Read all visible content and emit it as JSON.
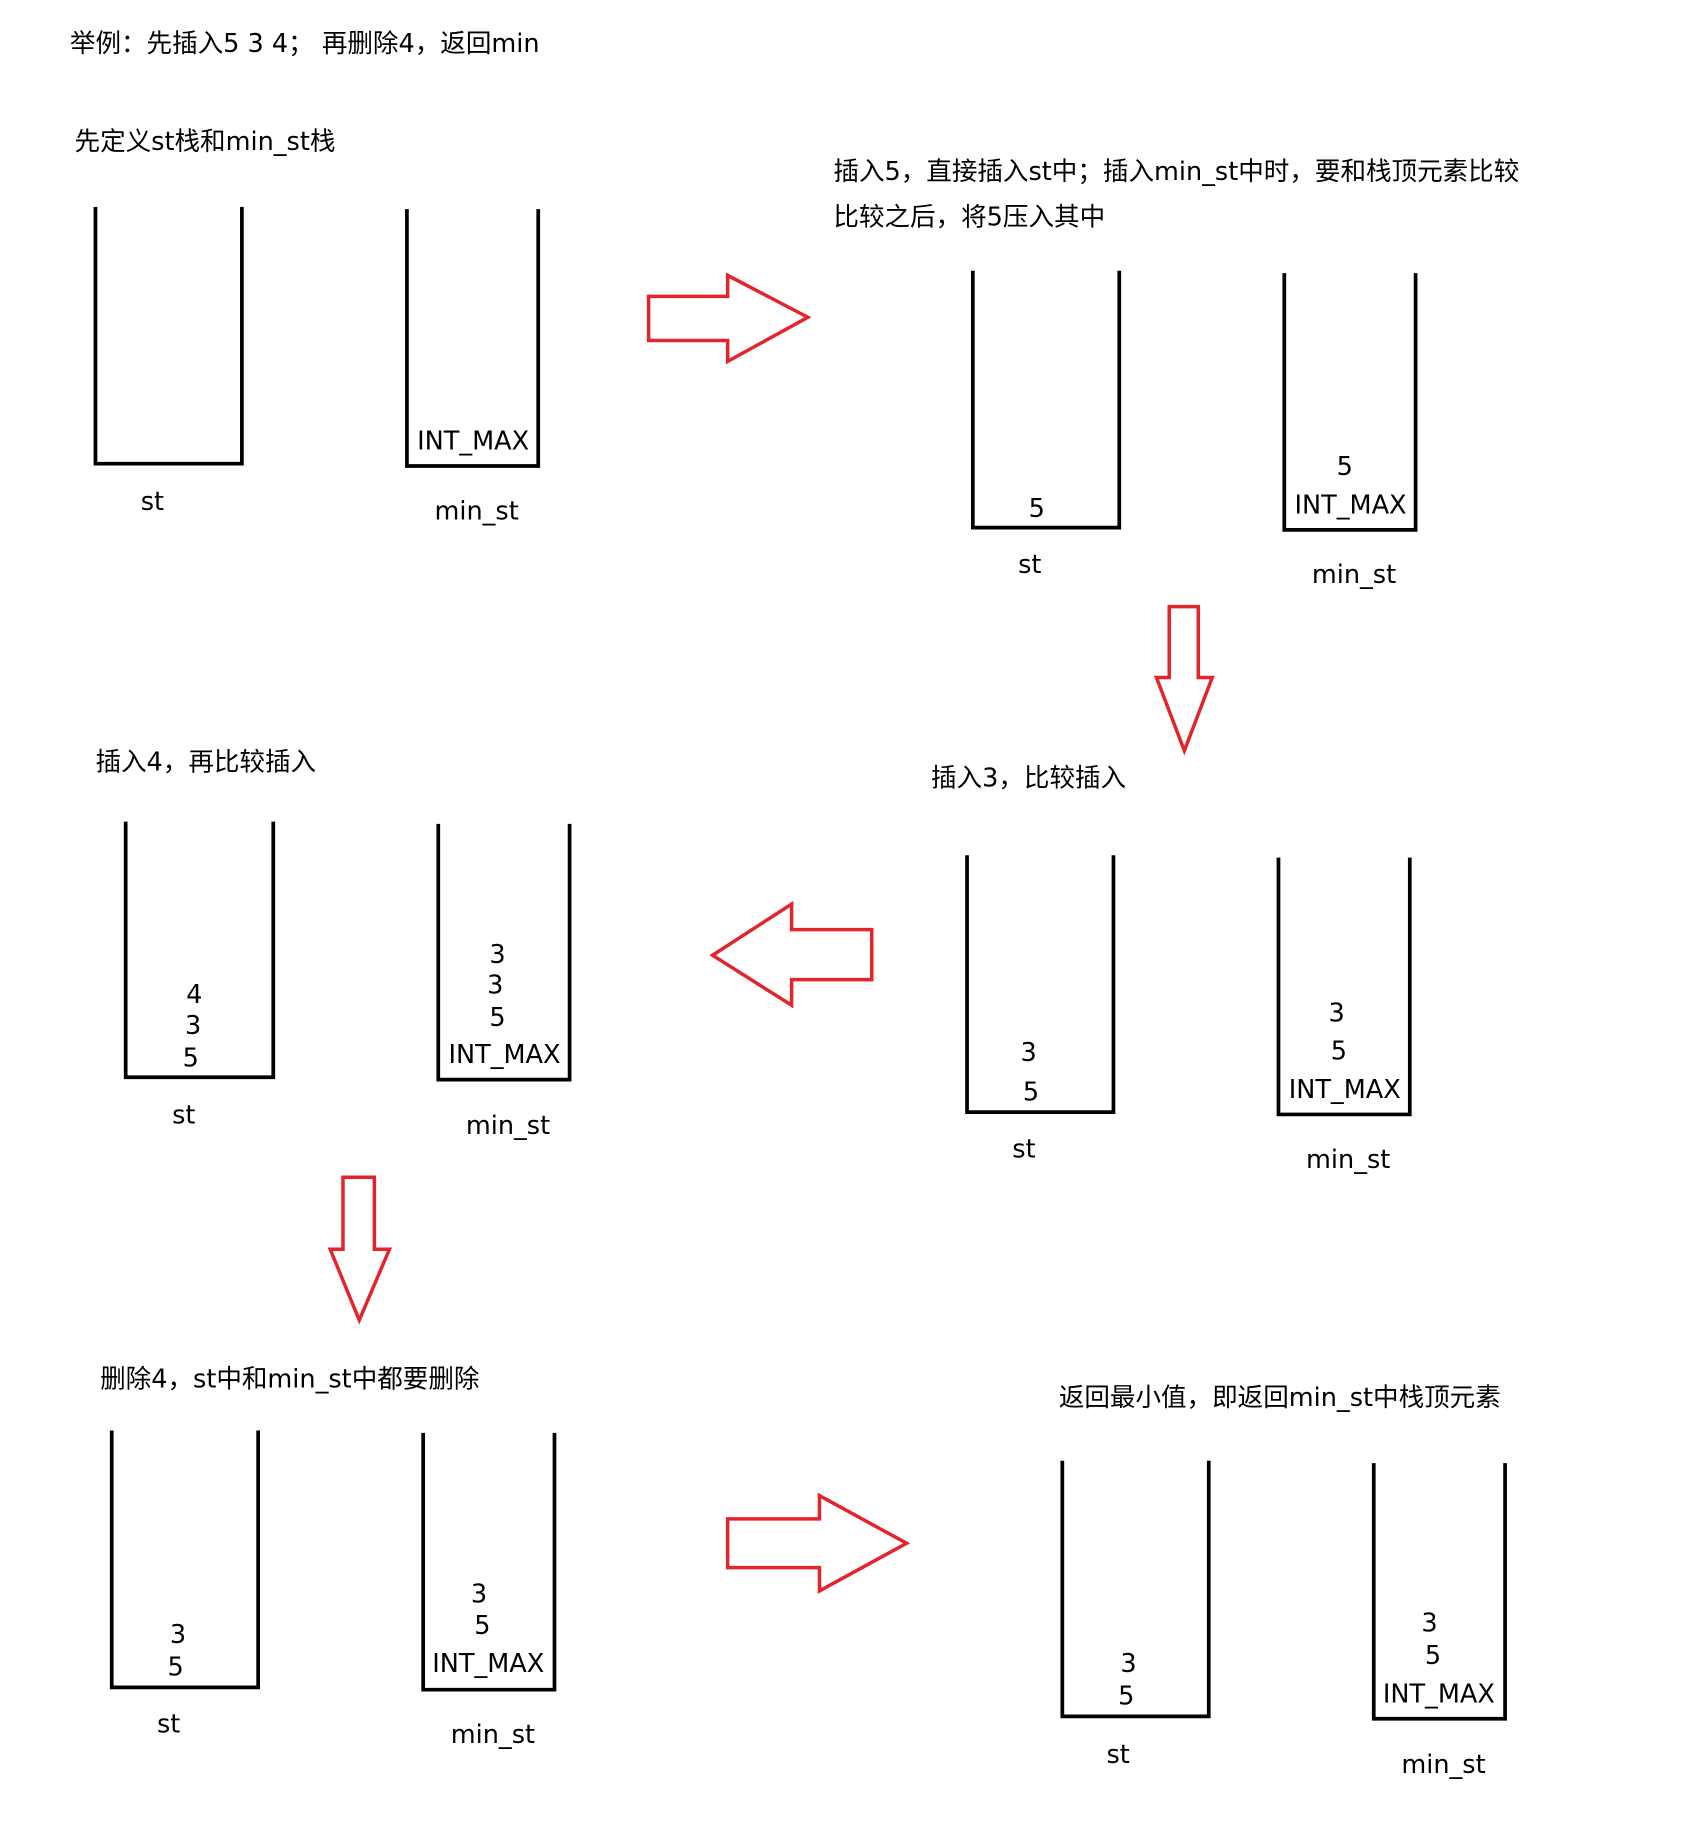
{
  "title": "举例：先插入5 3 4； 再删除4，返回min",
  "colors": {
    "arrow": "#e3242b",
    "stack": "#000000",
    "text": "#000000",
    "background": "#ffffff"
  },
  "steps": [
    {
      "caption": [
        "先定义st栈和min_st栈"
      ],
      "st": {
        "label": "st",
        "items": []
      },
      "min_st": {
        "label": "min_st",
        "items": [
          "INT_MAX"
        ]
      }
    },
    {
      "caption": [
        "插入5，直接插入st中；插入min_st中时，要和栈顶元素比较",
        "比较之后，将5压入其中"
      ],
      "st": {
        "label": "st",
        "items": [
          "5"
        ]
      },
      "min_st": {
        "label": "min_st",
        "items": [
          "5",
          "INT_MAX"
        ]
      }
    },
    {
      "caption": [
        "插入3，比较插入"
      ],
      "st": {
        "label": "st",
        "items": [
          "3",
          "5"
        ]
      },
      "min_st": {
        "label": "min_st",
        "items": [
          "3",
          "5",
          "INT_MAX"
        ]
      }
    },
    {
      "caption": [
        "插入4，再比较插入"
      ],
      "st": {
        "label": "st",
        "items": [
          "4",
          "3",
          "5"
        ]
      },
      "min_st": {
        "label": "min_st",
        "items": [
          "3",
          "3",
          "5",
          "INT_MAX"
        ]
      }
    },
    {
      "caption": [
        "删除4，st中和min_st中都要删除"
      ],
      "st": {
        "label": "st",
        "items": [
          "3",
          "5"
        ]
      },
      "min_st": {
        "label": "min_st",
        "items": [
          "3",
          "5",
          "INT_MAX"
        ]
      }
    },
    {
      "caption": [
        "返回最小值，即返回min_st中栈顶元素"
      ],
      "st": {
        "label": "st",
        "items": [
          "3",
          "5"
        ]
      },
      "min_st": {
        "label": "min_st",
        "items": [
          "3",
          "5",
          "INT_MAX"
        ]
      }
    }
  ]
}
